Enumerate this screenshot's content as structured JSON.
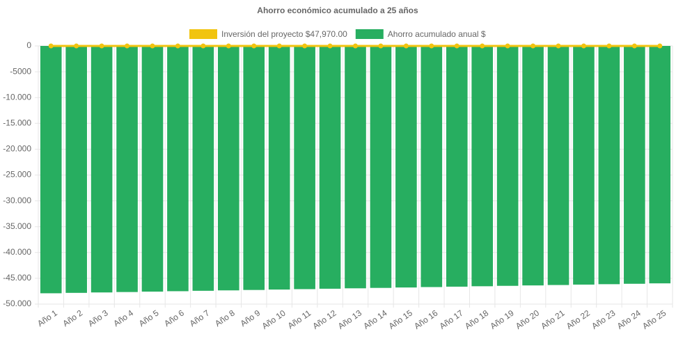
{
  "chart_data": {
    "type": "bar",
    "title": "Ahorro económico acumulado a 25 años",
    "categories": [
      "Año 1",
      "Año 2",
      "Año 3",
      "Año 4",
      "Año 5",
      "Año 6",
      "Año 7",
      "Año 8",
      "Año 9",
      "Año 10",
      "Año 11",
      "Año 12",
      "Año 13",
      "Año 14",
      "Año 15",
      "Año 16",
      "Año 17",
      "Año 18",
      "Año 19",
      "Año 20",
      "Año 21",
      "Año 22",
      "Año 23",
      "Año 24",
      "Año 25"
    ],
    "series": [
      {
        "name": "Inversión del proyecto $47,970.00",
        "type": "line",
        "color": "#f1c40f",
        "values": [
          0,
          0,
          0,
          0,
          0,
          0,
          0,
          0,
          0,
          0,
          0,
          0,
          0,
          0,
          0,
          0,
          0,
          0,
          0,
          0,
          0,
          0,
          0,
          0,
          0
        ]
      },
      {
        "name": "Ahorro acumulado anual $",
        "type": "bar",
        "color": "#27ae60",
        "values": [
          -47900,
          -47820,
          -47740,
          -47660,
          -47580,
          -47500,
          -47420,
          -47340,
          -47260,
          -47180,
          -47100,
          -47020,
          -46940,
          -46860,
          -46780,
          -46700,
          -46620,
          -46540,
          -46460,
          -46380,
          -46300,
          -46220,
          -46140,
          -46060,
          -45980
        ]
      }
    ],
    "ylim": [
      -50000,
      0
    ],
    "yticks": [
      0,
      -5000,
      {
        "value": -10000,
        "label": "-10.000"
      },
      {
        "value": -15000,
        "label": "-15.000"
      },
      {
        "value": -20000,
        "label": "-20.000"
      },
      {
        "value": -25000,
        "label": "-25.000"
      },
      {
        "value": -30000,
        "label": "-30.000"
      },
      {
        "value": -35000,
        "label": "-35.000"
      },
      {
        "value": -40000,
        "label": "-40.000"
      },
      {
        "value": -45000,
        "label": "-45.000"
      },
      {
        "value": -50000,
        "label": "-50.000"
      }
    ],
    "grid": true
  }
}
